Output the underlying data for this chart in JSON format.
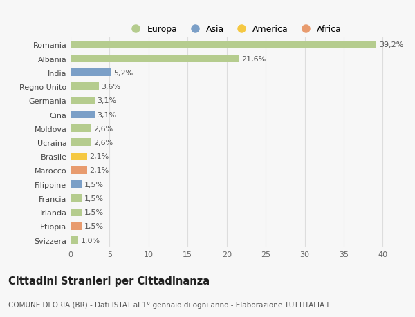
{
  "categories": [
    "Svizzera",
    "Etiopia",
    "Irlanda",
    "Francia",
    "Filippine",
    "Marocco",
    "Brasile",
    "Ucraina",
    "Moldova",
    "Cina",
    "Germania",
    "Regno Unito",
    "India",
    "Albania",
    "Romania"
  ],
  "values": [
    1.0,
    1.5,
    1.5,
    1.5,
    1.5,
    2.1,
    2.1,
    2.6,
    2.6,
    3.1,
    3.1,
    3.6,
    5.2,
    21.6,
    39.2
  ],
  "continent": [
    "Europa",
    "Africa",
    "Europa",
    "Europa",
    "Asia",
    "Africa",
    "America",
    "Europa",
    "Europa",
    "Asia",
    "Europa",
    "Europa",
    "Asia",
    "Europa",
    "Europa"
  ],
  "colors": {
    "Europa": "#b5cc8e",
    "Asia": "#7b9fc7",
    "America": "#f5c842",
    "Africa": "#e89b6e"
  },
  "title": "Cittadini Stranieri per Cittadinanza",
  "subtitle": "COMUNE DI ORIA (BR) - Dati ISTAT al 1° gennaio di ogni anno - Elaborazione TUTTITALIA.IT",
  "xlim": [
    0,
    42
  ],
  "xticks": [
    0,
    5,
    10,
    15,
    20,
    25,
    30,
    35,
    40
  ],
  "background_color": "#f7f7f7",
  "grid_color": "#dddddd",
  "bar_height": 0.55,
  "label_fontsize": 8,
  "title_fontsize": 10.5,
  "subtitle_fontsize": 7.5,
  "tick_fontsize": 8,
  "legend_fontsize": 9
}
